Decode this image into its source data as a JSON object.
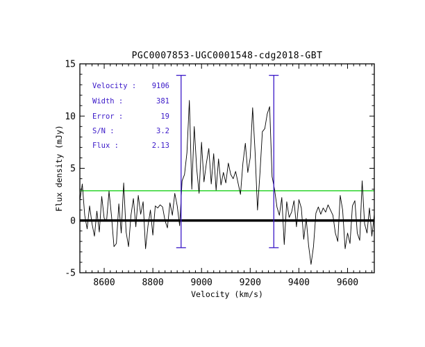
{
  "window": {
    "background": "#ffffff"
  },
  "chart_data": {
    "type": "line",
    "title": "PGC0007853-UGC0001548-cdg2018-GBT",
    "xlabel": "Velocity (km/s)",
    "ylabel": "Flux density (mJy)",
    "xlim": [
      8500,
      9710
    ],
    "ylim": [
      -5,
      15
    ],
    "xticks": [
      8600,
      8800,
      9000,
      9200,
      9400,
      9600
    ],
    "xtick_labels": [
      "8600",
      "8800",
      "9000",
      "9200",
      "9400",
      "9600"
    ],
    "xminor_step": 25,
    "yticks": [
      -5,
      0,
      5,
      10,
      15
    ],
    "ytick_labels": [
      "-5",
      "0",
      "5",
      "10",
      "15"
    ],
    "yminor_step": 1,
    "grid": false,
    "legend_position": "upper-left-inside",
    "colors": {
      "spectrum": "#000000",
      "baseline": "#000000",
      "threshold": "#00cc00",
      "markers": "#3a18c8",
      "annotations": "#3a18c8",
      "axes": "#000000"
    },
    "series": [
      {
        "name": "HI spectrum",
        "x_start": 8500,
        "x_step": 10,
        "x_end": 9710,
        "y": [
          1.9,
          3.5,
          0.5,
          -0.8,
          1.4,
          -0.3,
          -1.5,
          0.9,
          -1.1,
          2.3,
          0.2,
          0.0,
          2.8,
          0.4,
          -2.5,
          -2.2,
          1.6,
          -1.2,
          3.6,
          -1.1,
          -2.5,
          0.5,
          2.1,
          -0.6,
          2.4,
          0.6,
          1.8,
          -2.7,
          -0.5,
          1.0,
          -1.4,
          1.4,
          1.2,
          1.5,
          1.3,
          0.0,
          -0.7,
          1.7,
          0.5,
          2.6,
          1.4,
          -0.5,
          3.8,
          4.4,
          6.5,
          11.5,
          3.0,
          9.0,
          5.0,
          2.6,
          7.5,
          3.7,
          5.5,
          6.9,
          3.5,
          6.4,
          2.9,
          5.9,
          3.4,
          4.6,
          3.6,
          5.5,
          4.4,
          4.0,
          4.7,
          3.6,
          2.5,
          5.5,
          7.4,
          4.6,
          6.0,
          10.8,
          6.6,
          1.0,
          4.5,
          8.5,
          8.8,
          10.2,
          10.9,
          4.2,
          3.0,
          1.3,
          0.5,
          2.2,
          -2.3,
          1.8,
          0.3,
          0.8,
          1.9,
          -0.6,
          2.0,
          1.2,
          -1.8,
          0.2,
          -2.4,
          -4.2,
          -2.5,
          0.7,
          1.3,
          0.6,
          1.2,
          0.8,
          1.5,
          1.0,
          0.5,
          -1.2,
          -2.0,
          2.4,
          1.0,
          -2.7,
          -1.2,
          -2.2,
          1.4,
          1.9,
          -1.2,
          -1.9,
          3.8,
          -0.3,
          -1.2,
          1.2,
          -1.5,
          0.6
        ]
      }
    ],
    "baseline": {
      "y": 0
    },
    "threshold_line": {
      "y": 2.85
    },
    "velocity_markers": {
      "x": [
        8916,
        9297
      ],
      "y_min": -2.6,
      "y_max": 13.9
    },
    "annotations": [
      {
        "label": "Velocity :",
        "value": "9106"
      },
      {
        "label": "Width :",
        "value": "381"
      },
      {
        "label": "Error :",
        "value": "19"
      },
      {
        "label": "S/N :",
        "value": "3.2"
      },
      {
        "label": "Flux :",
        "value": "2.13"
      }
    ]
  }
}
